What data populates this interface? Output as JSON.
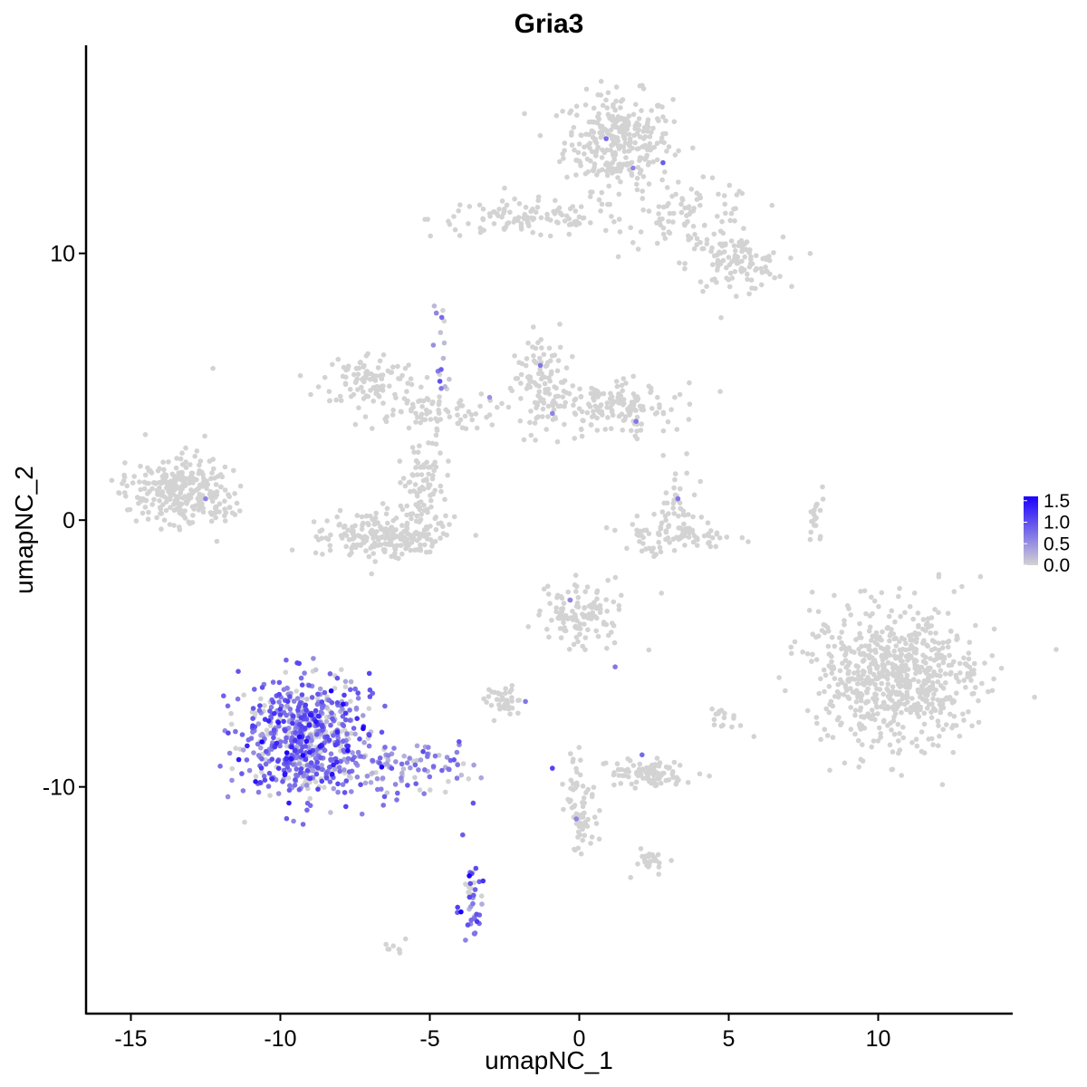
{
  "chart_data": {
    "type": "scatter",
    "title": "Gria3",
    "xlabel": "umapNC_1",
    "ylabel": "umapNC_2",
    "xlim": [
      -16.5,
      14.5
    ],
    "ylim": [
      -18.5,
      17.8
    ],
    "xticks": [
      -15,
      -10,
      -5,
      0,
      5,
      10
    ],
    "xtick_labels": [
      "-15",
      "-10",
      "-5",
      "0",
      "5",
      "10"
    ],
    "yticks": [
      -10,
      0,
      10
    ],
    "ytick_labels": [
      "-10",
      "0",
      "10"
    ],
    "grid": false,
    "legend_position": "right",
    "color_scale": {
      "low": 0.0,
      "high": 1.6,
      "low_color": "#d3d3d3",
      "high_color": "#1a00ff",
      "ticks": [
        1.5,
        1.0,
        0.5,
        0.0
      ],
      "tick_labels": [
        "1.5",
        "1.0",
        "0.5",
        "0.0"
      ]
    },
    "clusters": [
      {
        "cx": 1.3,
        "cy": 14.2,
        "sx": 0.9,
        "sy": 0.9,
        "n": 300,
        "expr": 0.0
      },
      {
        "cx": -1.8,
        "cy": 11.3,
        "sx": 1.6,
        "sy": 0.35,
        "n": 110,
        "expr": 0.0
      },
      {
        "cx": 3.8,
        "cy": 11.4,
        "sx": 1.1,
        "sy": 0.6,
        "n": 90,
        "expr": 0.0
      },
      {
        "cx": 5.2,
        "cy": 9.6,
        "sx": 0.8,
        "sy": 0.5,
        "n": 110,
        "expr": 0.0
      },
      {
        "cx": -12.5,
        "cy": 5.6,
        "sx": 0.7,
        "sy": 0.5,
        "n": 1,
        "expr": 0.0
      },
      {
        "cx": -7.0,
        "cy": 5.3,
        "sx": 0.8,
        "sy": 0.5,
        "n": 100,
        "expr": 0.0
      },
      {
        "cx": -5.2,
        "cy": 4.1,
        "sx": 1.2,
        "sy": 0.35,
        "n": 80,
        "expr": 0.0
      },
      {
        "cx": -4.6,
        "cy": 6.3,
        "sx": 0.15,
        "sy": 0.9,
        "n": 15,
        "expr": 0.6
      },
      {
        "cx": -1.3,
        "cy": 5.2,
        "sx": 0.5,
        "sy": 0.9,
        "n": 110,
        "expr": 0.0
      },
      {
        "cx": 1.2,
        "cy": 4.2,
        "sx": 1.0,
        "sy": 0.5,
        "n": 150,
        "expr": 0.0
      },
      {
        "cx": -13.5,
        "cy": 1.2,
        "sx": 0.8,
        "sy": 0.6,
        "n": 250,
        "expr": 0.0
      },
      {
        "cx": -12.1,
        "cy": 0.5,
        "sx": 0.4,
        "sy": 0.4,
        "n": 40,
        "expr": 0.0
      },
      {
        "cx": -6.6,
        "cy": -0.6,
        "sx": 1.0,
        "sy": 0.45,
        "n": 220,
        "expr": 0.0
      },
      {
        "cx": -5.2,
        "cy": 1.2,
        "sx": 0.4,
        "sy": 0.9,
        "n": 90,
        "expr": 0.0
      },
      {
        "cx": 3.3,
        "cy": 0.5,
        "sx": 0.3,
        "sy": 0.7,
        "n": 40,
        "expr": 0.0
      },
      {
        "cx": 3.3,
        "cy": -0.6,
        "sx": 0.9,
        "sy": 0.3,
        "n": 80,
        "expr": 0.0
      },
      {
        "cx": 7.9,
        "cy": 0.2,
        "sx": 0.15,
        "sy": 0.5,
        "n": 20,
        "expr": 0.0
      },
      {
        "cx": 10.6,
        "cy": -5.9,
        "sx": 1.4,
        "sy": 1.3,
        "n": 700,
        "expr": 0.0
      },
      {
        "cx": 0.1,
        "cy": -3.5,
        "sx": 0.7,
        "sy": 0.6,
        "n": 120,
        "expr": 0.0
      },
      {
        "cx": -2.5,
        "cy": -6.8,
        "sx": 0.3,
        "sy": 0.3,
        "n": 40,
        "expr": 0.0
      },
      {
        "cx": 2.4,
        "cy": -9.5,
        "sx": 0.7,
        "sy": 0.25,
        "n": 90,
        "expr": 0.0
      },
      {
        "cx": 5.0,
        "cy": -7.5,
        "sx": 0.3,
        "sy": 0.2,
        "n": 15,
        "expr": 0.0
      },
      {
        "cx": 0.0,
        "cy": -10.8,
        "sx": 0.25,
        "sy": 1.0,
        "n": 70,
        "expr": 0.0
      },
      {
        "cx": 2.4,
        "cy": -12.7,
        "sx": 0.3,
        "sy": 0.25,
        "n": 25,
        "expr": 0.0
      },
      {
        "cx": -6.2,
        "cy": -16.0,
        "sx": 0.2,
        "sy": 0.15,
        "n": 8,
        "expr": 0.0
      },
      {
        "cx": -9.1,
        "cy": -8.2,
        "sx": 1.1,
        "sy": 1.1,
        "n": 650,
        "expr": 0.75
      },
      {
        "cx": -5.6,
        "cy": -9.3,
        "sx": 1.1,
        "sy": 0.45,
        "n": 90,
        "expr": 0.55
      },
      {
        "cx": -3.6,
        "cy": -14.5,
        "sx": 0.2,
        "sy": 0.7,
        "n": 40,
        "expr": 0.85
      }
    ],
    "highlight_points": [
      {
        "x": 0.9,
        "y": 14.3,
        "value": 0.8
      },
      {
        "x": 1.8,
        "y": 13.2,
        "value": 0.6
      },
      {
        "x": 2.8,
        "y": 13.4,
        "value": 0.9
      },
      {
        "x": -1.3,
        "y": 5.8,
        "value": 0.7
      },
      {
        "x": -0.9,
        "y": 4.0,
        "value": 0.6
      },
      {
        "x": 1.9,
        "y": 3.7,
        "value": 0.7
      },
      {
        "x": -12.5,
        "y": 0.8,
        "value": 0.6
      },
      {
        "x": 3.3,
        "y": 0.8,
        "value": 0.7
      },
      {
        "x": -3.0,
        "y": 4.6,
        "value": 0.5
      },
      {
        "x": -0.3,
        "y": -3.0,
        "value": 0.6
      },
      {
        "x": 1.2,
        "y": -5.5,
        "value": 0.7
      },
      {
        "x": -1.8,
        "y": -6.8,
        "value": 0.7
      },
      {
        "x": -0.9,
        "y": -9.3,
        "value": 1.1
      },
      {
        "x": 2.1,
        "y": -8.8,
        "value": 0.8
      },
      {
        "x": -0.1,
        "y": -11.2,
        "value": 0.6
      },
      {
        "x": -3.9,
        "y": -11.8,
        "value": 0.9
      },
      {
        "x": -4.6,
        "y": 7.6,
        "value": 0.8
      },
      {
        "x": -7.9,
        "y": -6.9,
        "value": 1.5
      },
      {
        "x": -8.3,
        "y": -6.4,
        "value": 1.6
      },
      {
        "x": -9.0,
        "y": -7.3,
        "value": 1.4
      }
    ]
  }
}
